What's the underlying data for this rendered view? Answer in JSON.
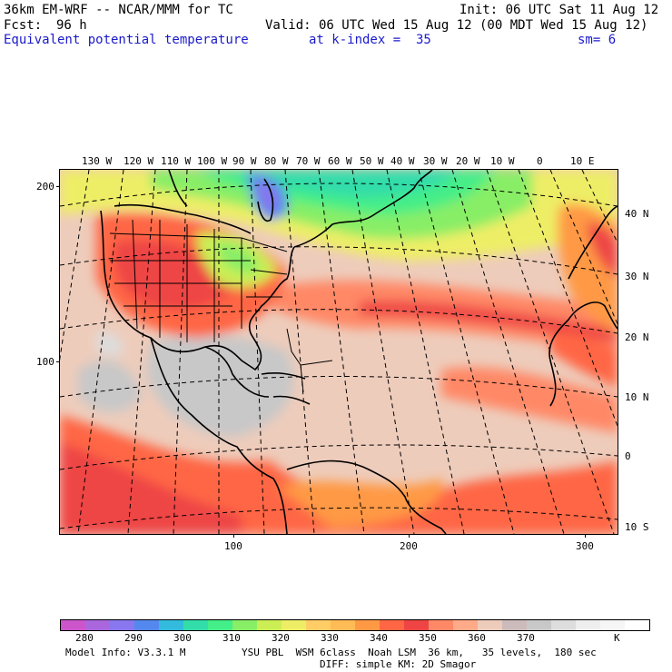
{
  "header": {
    "model": "36km EM-WRF -- NCAR/MMM for TC",
    "init": "Init: 06 UTC Sat 11 Aug 12",
    "fcst_label": "Fcst:",
    "fcst_value": "96 h",
    "valid": "Valid: 06 UTC Wed 15 Aug 12 (00 MDT Wed 15 Aug 12)",
    "field": "Equivalent potential temperature",
    "level": "at k-index =  35",
    "smooth": "sm= 6"
  },
  "map": {
    "lon_labels": [
      "130 W",
      "120 W",
      "110 W",
      "100 W",
      "90 W",
      "80 W",
      "70 W",
      "60 W",
      "50 W",
      "40 W",
      "30 W",
      "20 W",
      "10 W",
      "0",
      "10 E"
    ],
    "lat_labels": [
      "40 N",
      "30 N",
      "20 N",
      "10 N",
      "0",
      "10 S"
    ],
    "grid_y_labels": [
      "200",
      "100"
    ],
    "grid_x_labels": [
      "100",
      "200",
      "300"
    ]
  },
  "colorbar": {
    "colors": [
      "#cc55cc",
      "#aa66dd",
      "#8877ee",
      "#5588ee",
      "#33bbdd",
      "#33ddaa",
      "#44ee88",
      "#88ee66",
      "#ccee55",
      "#eeee66",
      "#ffcc66",
      "#ffbb55",
      "#ff9944",
      "#ff6644",
      "#ee4444",
      "#ff8866",
      "#ffaa88",
      "#eeccbb",
      "#ccbbbb",
      "#c8c8c8",
      "#dddddd",
      "#eeeeee",
      "#f6f6f6",
      "#ffffff"
    ],
    "labels": [
      "280",
      "290",
      "300",
      "310",
      "320",
      "330",
      "340",
      "350",
      "360",
      "370"
    ],
    "unit": "K"
  },
  "footer": {
    "model_info": "Model Info: V3.3.1 M",
    "physics": "YSU PBL  WSM 6class  Noah LSM  36 km,   35 levels,  180 sec",
    "diffusion": "DIFF: simple KM: 2D Smagor"
  }
}
